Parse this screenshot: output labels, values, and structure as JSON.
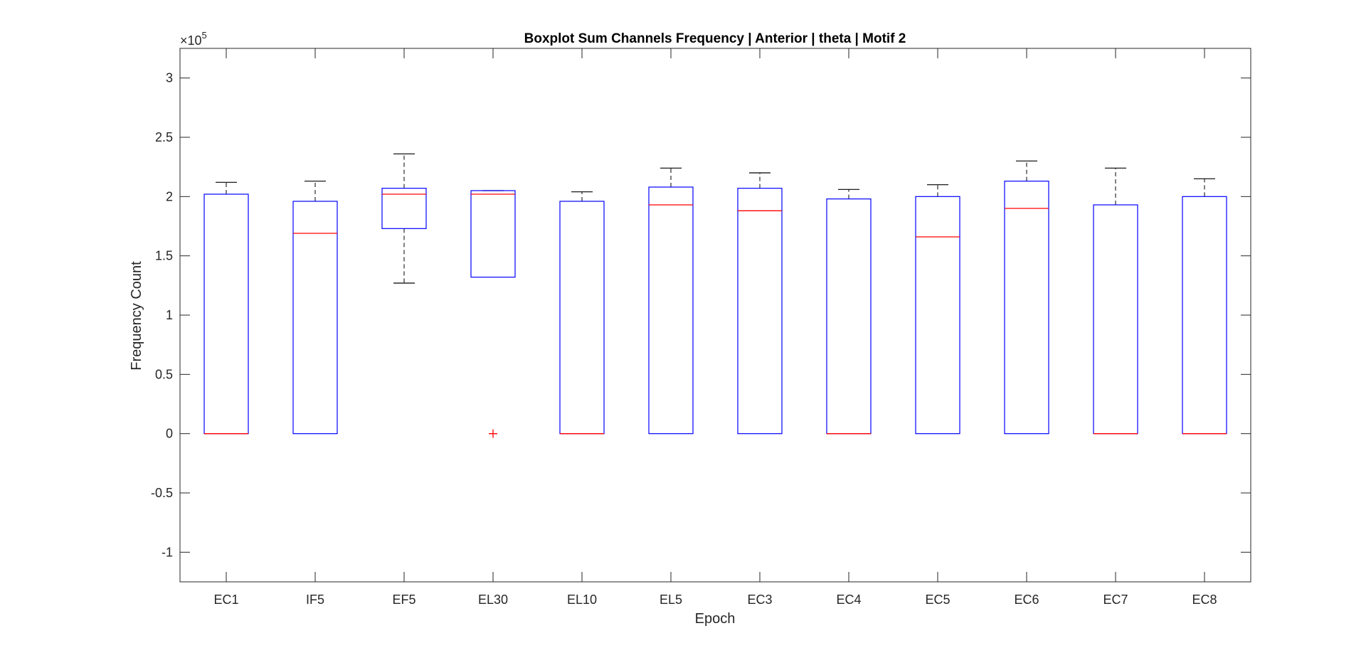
{
  "chart_data": {
    "type": "boxplot",
    "title": "Boxplot Sum Channels Frequency | Anterior | theta | Motif 2",
    "xlabel": "Epoch",
    "ylabel": "Frequency Count",
    "y_exponent_label": "×10",
    "y_exponent_power": "5",
    "ylim": [
      -1.25,
      3.25
    ],
    "y_ticks": [
      -1,
      -0.5,
      0,
      0.5,
      1,
      1.5,
      2,
      2.5,
      3
    ],
    "y_tick_labels": [
      "-1",
      "-0.5",
      "0",
      "0.5",
      "1",
      "1.5",
      "2",
      "2.5",
      "3"
    ],
    "y_scale_note": "values in units of 1e5",
    "grid": false,
    "colors": {
      "box": "#0000ff",
      "median": "#ff0000",
      "whisker": "#000000",
      "outlier": "#ff0000",
      "axis": "#262626"
    },
    "categories": [
      "EC1",
      "IF5",
      "EF5",
      "EL30",
      "EL10",
      "EL5",
      "EC3",
      "EC4",
      "EC5",
      "EC6",
      "EC7",
      "EC8"
    ],
    "boxes": [
      {
        "label": "EC1",
        "whisker_low": 0,
        "q1": 0,
        "median": 0,
        "q3": 2.02,
        "whisker_high": 2.12,
        "outliers": []
      },
      {
        "label": "IF5",
        "whisker_low": 0,
        "q1": 0,
        "median": 1.69,
        "q3": 1.96,
        "whisker_high": 2.13,
        "outliers": []
      },
      {
        "label": "EF5",
        "whisker_low": 1.27,
        "q1": 1.73,
        "median": 2.02,
        "q3": 2.07,
        "whisker_high": 2.36,
        "outliers": []
      },
      {
        "label": "EL30",
        "whisker_low": 1.32,
        "q1": 1.32,
        "median": 2.02,
        "q3": 2.05,
        "whisker_high": 2.05,
        "outliers": [
          0
        ]
      },
      {
        "label": "EL10",
        "whisker_low": 0,
        "q1": 0,
        "median": 0,
        "q3": 1.96,
        "whisker_high": 2.04,
        "outliers": []
      },
      {
        "label": "EL5",
        "whisker_low": 0,
        "q1": 0,
        "median": 1.93,
        "q3": 2.08,
        "whisker_high": 2.24,
        "outliers": []
      },
      {
        "label": "EC3",
        "whisker_low": 0,
        "q1": 0,
        "median": 1.88,
        "q3": 2.07,
        "whisker_high": 2.2,
        "outliers": []
      },
      {
        "label": "EC4",
        "whisker_low": 0,
        "q1": 0,
        "median": 0,
        "q3": 1.98,
        "whisker_high": 2.06,
        "outliers": []
      },
      {
        "label": "EC5",
        "whisker_low": 0,
        "q1": 0,
        "median": 1.66,
        "q3": 2.0,
        "whisker_high": 2.1,
        "outliers": []
      },
      {
        "label": "EC6",
        "whisker_low": 0,
        "q1": 0,
        "median": 1.9,
        "q3": 2.13,
        "whisker_high": 2.3,
        "outliers": []
      },
      {
        "label": "EC7",
        "whisker_low": 0,
        "q1": 0,
        "median": 0,
        "q3": 1.93,
        "whisker_high": 2.24,
        "outliers": []
      },
      {
        "label": "EC8",
        "whisker_low": 0,
        "q1": 0,
        "median": 0,
        "q3": 2.0,
        "whisker_high": 2.15,
        "outliers": []
      }
    ]
  }
}
